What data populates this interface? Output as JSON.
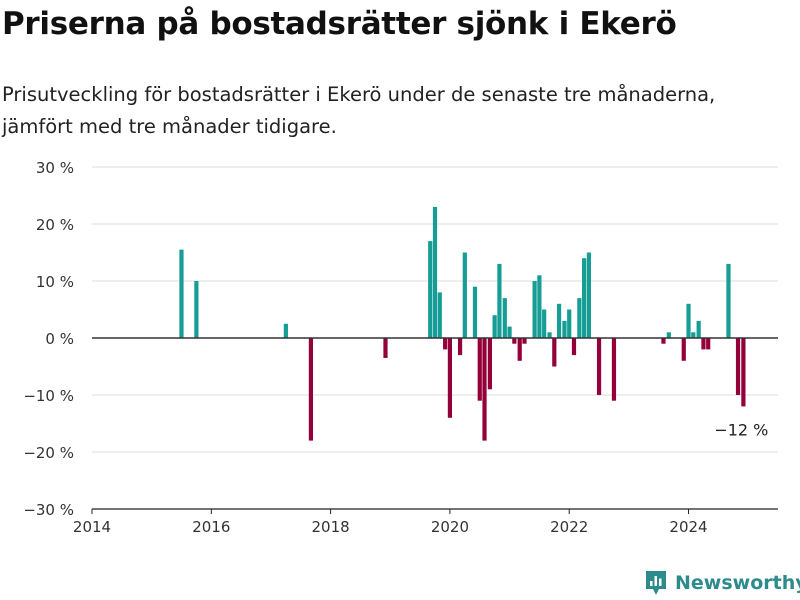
{
  "header": {
    "title": "Priserna på bostadsrätter sjönk i Ekerö",
    "subtitle": "Prisutveckling för bostadsrätter i Ekerö under de senaste tre månaderna, jämfört med tre månader tidigare."
  },
  "brand": {
    "name": "Newsworthy",
    "icon": "newsworthy-logo-icon"
  },
  "colors": {
    "positive": "#169e96",
    "negative": "#93003a",
    "grid": "#dddddd",
    "zero": "#333333",
    "brand": "#2e8b8b"
  },
  "chart_data": {
    "type": "bar",
    "ylim": [
      -30,
      30
    ],
    "xlim": [
      2014,
      2025.5
    ],
    "yticks": [
      30,
      20,
      10,
      0,
      -10,
      -20,
      -30
    ],
    "ytick_labels": [
      "30 %",
      "20 %",
      "10 %",
      "0 %",
      "−10 %",
      "−20 %",
      "−30 %"
    ],
    "xticks": [
      2014,
      2016,
      2018,
      2020,
      2022,
      2024
    ],
    "xtick_labels": [
      "2014",
      "2016",
      "2018",
      "2020",
      "2022",
      "2024"
    ],
    "grid": true,
    "annotation": {
      "text": "−12 %",
      "x": 2024.92,
      "y": -12
    },
    "x": [
      2015.5,
      2015.75,
      2017.25,
      2017.67,
      2018.92,
      2019.67,
      2019.75,
      2019.83,
      2019.92,
      2020.0,
      2020.17,
      2020.25,
      2020.42,
      2020.5,
      2020.58,
      2020.67,
      2020.75,
      2020.83,
      2020.92,
      2021.0,
      2021.08,
      2021.17,
      2021.25,
      2021.42,
      2021.5,
      2021.58,
      2021.67,
      2021.75,
      2021.83,
      2021.92,
      2022.0,
      2022.08,
      2022.17,
      2022.25,
      2022.33,
      2022.5,
      2022.75,
      2023.58,
      2023.67,
      2023.92,
      2024.0,
      2024.08,
      2024.17,
      2024.25,
      2024.33,
      2024.67,
      2024.83,
      2024.92
    ],
    "values": [
      15.5,
      10,
      2.5,
      -18,
      -3.5,
      17,
      23,
      8,
      -2,
      -14,
      -3,
      15,
      9,
      -11,
      -18,
      -9,
      4,
      13,
      7,
      2,
      -1,
      -4,
      -1,
      10,
      11,
      5,
      1,
      -5,
      6,
      3,
      5,
      -3,
      7,
      14,
      15,
      -10,
      -11,
      -1,
      1,
      -4,
      6,
      1,
      3,
      -2,
      -2,
      13,
      -10,
      -12
    ]
  }
}
